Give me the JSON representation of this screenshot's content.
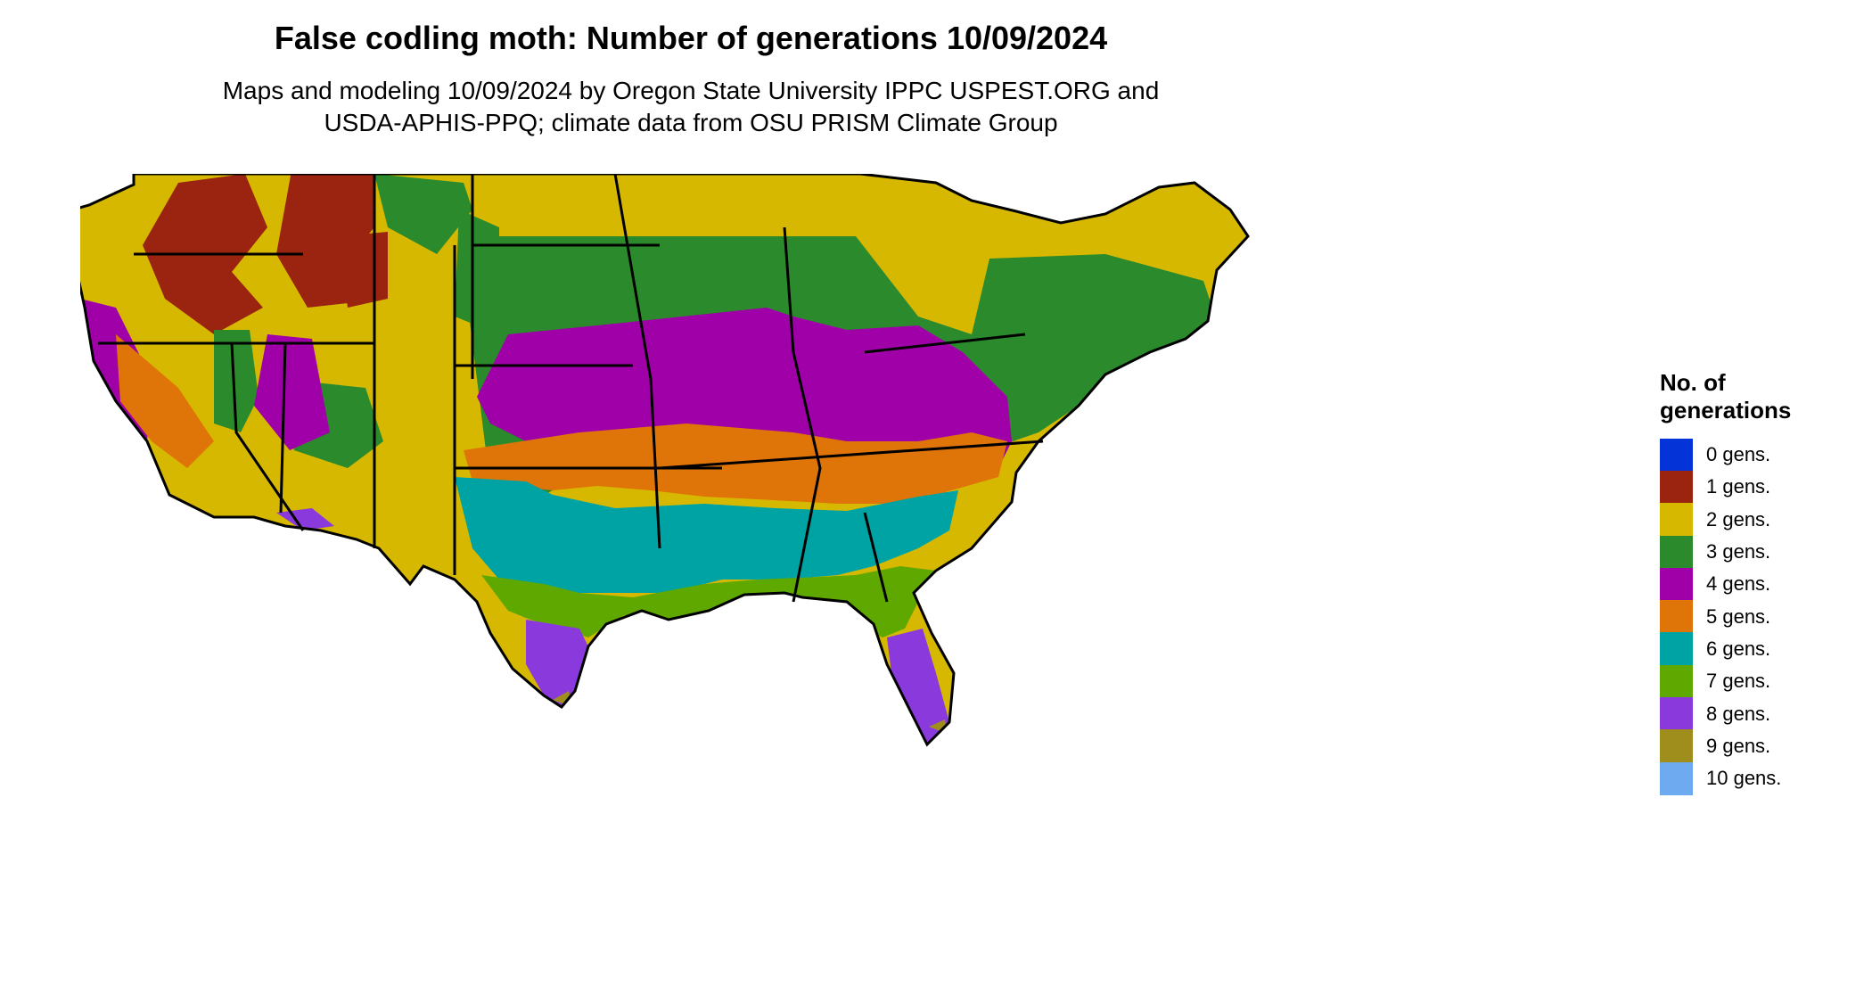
{
  "title": "False codling moth: Number of generations 10/09/2024",
  "subtitle_line1": "Maps and modeling 10/09/2024 by Oregon State University IPPC USPEST.ORG and",
  "subtitle_line2": "USDA-APHIS-PPQ; climate data from OSU PRISM Climate Group",
  "map": {
    "region": "Contiguous United States",
    "zones": [
      {
        "generations": 1,
        "area": "Northern Rockies and Cascades"
      },
      {
        "generations": 2,
        "area": "Northwest, northern plains, upper Midwest, northern New England"
      },
      {
        "generations": 3,
        "area": "Central plains, Great Lakes, Northeast"
      },
      {
        "generations": 4,
        "area": "Central Midwest, Ohio Valley, Mid-Atlantic"
      },
      {
        "generations": 5,
        "area": "Upper South, Oklahoma, California valleys"
      },
      {
        "generations": 6,
        "area": "Deep South"
      },
      {
        "generations": 7,
        "area": "Gulf Coast, north Florida"
      },
      {
        "generations": 8,
        "area": "South Texas, south Florida, southern Arizona"
      },
      {
        "generations": 9,
        "area": "Extreme south Texas and Florida"
      }
    ]
  },
  "legend": {
    "title_line1": "No. of",
    "title_line2": "generations",
    "items": [
      {
        "label": "0 gens.",
        "color": "#0433d8"
      },
      {
        "label": "1 gens.",
        "color": "#9a2410"
      },
      {
        "label": "2 gens.",
        "color": "#d6b800"
      },
      {
        "label": "3 gens.",
        "color": "#2b8a2b"
      },
      {
        "label": "4 gens.",
        "color": "#a000a8"
      },
      {
        "label": "5 gens.",
        "color": "#df7408"
      },
      {
        "label": "6 gens.",
        "color": "#00a3a3"
      },
      {
        "label": "7 gens.",
        "color": "#5ea800"
      },
      {
        "label": "8 gens.",
        "color": "#8a3adc"
      },
      {
        "label": "9 gens.",
        "color": "#9f8d1c"
      },
      {
        "label": "10 gens.",
        "color": "#6eaaf0"
      }
    ]
  }
}
